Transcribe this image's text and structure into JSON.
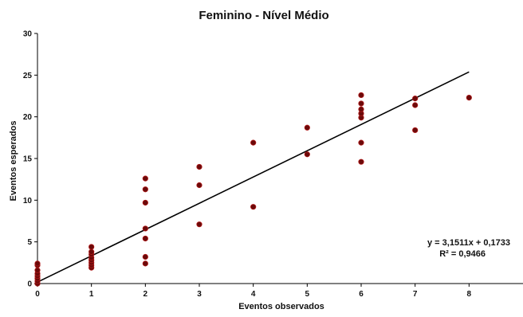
{
  "chart_data": {
    "type": "scatter",
    "title": "Feminino - Nível Médio",
    "xlabel": "Eventos observados",
    "ylabel": "Eventos esperados",
    "xlim": [
      0,
      9
    ],
    "ylim": [
      0,
      30
    ],
    "x_ticks": [
      0,
      1,
      2,
      3,
      4,
      5,
      6,
      7,
      8
    ],
    "y_ticks": [
      0,
      5,
      10,
      15,
      20,
      25,
      30
    ],
    "grid": false,
    "legend": "none",
    "marker_color": "#6b0a0a",
    "line_color": "#000000",
    "series": [
      {
        "points": [
          [
            0,
            0.0
          ],
          [
            0,
            0.3
          ],
          [
            0,
            0.6
          ],
          [
            0,
            0.9
          ],
          [
            0,
            1.2
          ],
          [
            0,
            1.6
          ],
          [
            0,
            2.2
          ],
          [
            0,
            2.4
          ],
          [
            1,
            1.9
          ],
          [
            1,
            2.2
          ],
          [
            1,
            2.5
          ],
          [
            1,
            2.8
          ],
          [
            1,
            3.1
          ],
          [
            1,
            3.5
          ],
          [
            1,
            3.8
          ],
          [
            1,
            4.4
          ],
          [
            2,
            2.4
          ],
          [
            2,
            3.2
          ],
          [
            2,
            5.4
          ],
          [
            2,
            6.6
          ],
          [
            2,
            9.7
          ],
          [
            2,
            11.3
          ],
          [
            2,
            12.6
          ],
          [
            3,
            7.1
          ],
          [
            3,
            11.8
          ],
          [
            3,
            14.0
          ],
          [
            4,
            9.2
          ],
          [
            4,
            16.9
          ],
          [
            5,
            15.5
          ],
          [
            5,
            18.7
          ],
          [
            6,
            14.6
          ],
          [
            6,
            16.9
          ],
          [
            6,
            19.9
          ],
          [
            6,
            20.4
          ],
          [
            6,
            20.9
          ],
          [
            6,
            21.6
          ],
          [
            6,
            22.6
          ],
          [
            7,
            18.4
          ],
          [
            7,
            21.4
          ],
          [
            7,
            22.2
          ],
          [
            8,
            22.3
          ]
        ]
      }
    ],
    "trendline": {
      "slope": 3.1511,
      "intercept": 0.1733,
      "x_range": [
        0,
        8
      ]
    },
    "annotations": {
      "equation": "y = 3,1511x + 0,1733",
      "r2": "R² = 0,9466"
    }
  }
}
